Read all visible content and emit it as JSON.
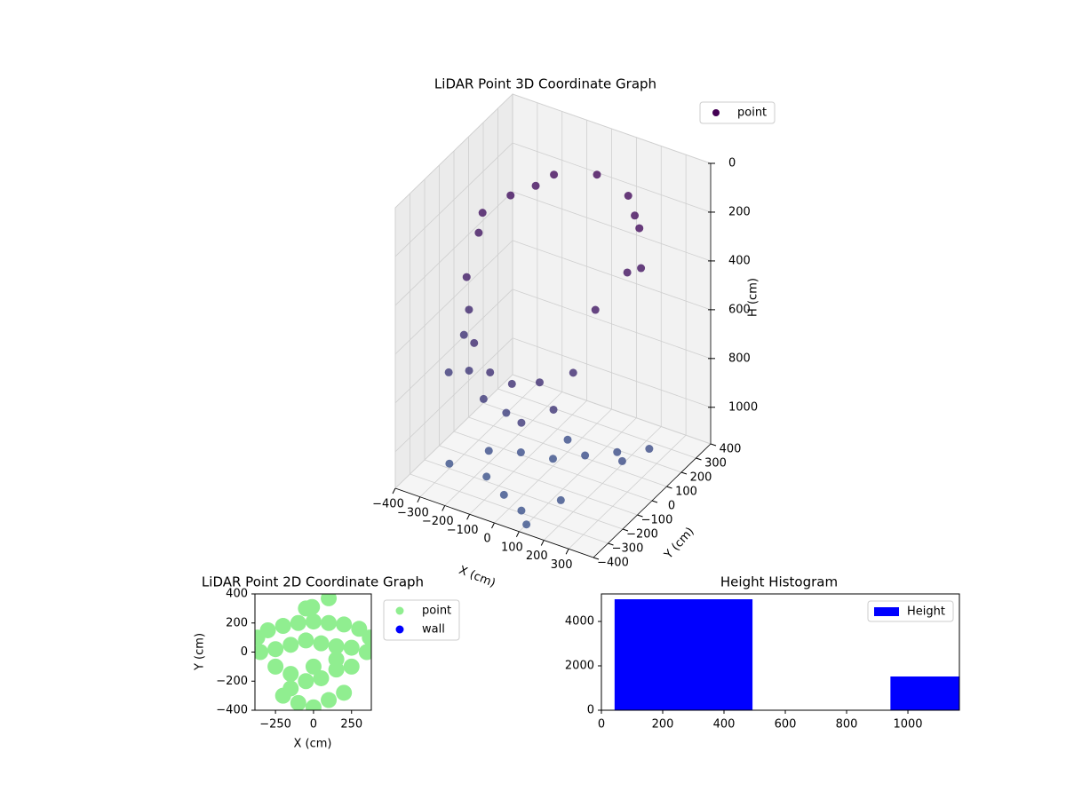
{
  "chart_data": [
    {
      "type": "scatter3d",
      "title": "LiDAR Point 3D Coordinate Graph",
      "xlabel": "X (cm)",
      "ylabel": "Y (cm)",
      "zlabel": "H (cm)",
      "xlim": [
        -400,
        400
      ],
      "ylim": [
        -400,
        400
      ],
      "zlim": [
        0,
        1150
      ],
      "zinvert": true,
      "xticks": [
        {
          "value": -400,
          "label": "−400"
        },
        {
          "value": -300,
          "label": "−300"
        },
        {
          "value": -200,
          "label": "−200"
        },
        {
          "value": -100,
          "label": "−100"
        },
        0,
        100,
        200,
        300
      ],
      "yticks": [
        {
          "value": -400,
          "label": "−400"
        },
        {
          "value": -300,
          "label": "−300"
        },
        {
          "value": -200,
          "label": "−200"
        },
        {
          "value": -100,
          "label": "−100"
        },
        0,
        100,
        200,
        300,
        400
      ],
      "zticks": [
        0,
        200,
        400,
        600,
        800,
        1000
      ],
      "colormap": [
        "#440154",
        "#3b528b"
      ],
      "legend": "upper right",
      "series": [
        {
          "name": "point",
          "color": "#440154",
          "x": [
            -300,
            -260,
            -150,
            0,
            150,
            260,
            300,
            260,
            -260,
            -200,
            200,
            -320,
            320,
            -280,
            -200,
            -100,
            0,
            100,
            200,
            -330,
            -250,
            -150,
            50,
            150,
            -350,
            -100,
            -200,
            -100,
            0,
            100,
            200,
            300,
            -150,
            -50,
            50,
            150,
            250,
            0,
            -300,
            100
          ],
          "y": [
            0,
            150,
            260,
            300,
            260,
            150,
            0,
            -150,
            -150,
            220,
            220,
            60,
            60,
            -100,
            -200,
            -260,
            -280,
            -260,
            -200,
            -50,
            -150,
            -220,
            -300,
            -250,
            -120,
            -150,
            -100,
            -50,
            0,
            50,
            100,
            150,
            -200,
            -250,
            -300,
            -200,
            50,
            100,
            -200,
            -350
          ],
          "z": [
            300,
            220,
            160,
            130,
            140,
            170,
            250,
            330,
            380,
            200,
            180,
            260,
            260,
            550,
            600,
            650,
            650,
            620,
            580,
            700,
            760,
            800,
            780,
            720,
            820,
            880,
            1100,
            1100,
            1120,
            1100,
            1080,
            1060,
            1130,
            1140,
            1140,
            1120,
            1070,
            1100,
            1130,
            1150
          ]
        }
      ]
    },
    {
      "type": "scatter",
      "title": "LiDAR Point 2D Coordinate Graph",
      "xlabel": "X (cm)",
      "ylabel": "Y (cm)",
      "xlim": [
        -385,
        380
      ],
      "ylim": [
        -400,
        400
      ],
      "xticks": [
        {
          "value": -250,
          "label": "−250"
        },
        0,
        250
      ],
      "yticks": [
        {
          "value": -400,
          "label": "−400"
        },
        {
          "value": -200,
          "label": "−200"
        },
        0,
        200,
        400
      ],
      "legend": "outside right",
      "series": [
        {
          "name": "point",
          "color": "#90ee90",
          "x": [
            -370,
            -300,
            -200,
            -100,
            0,
            100,
            200,
            300,
            370,
            -350,
            -250,
            -150,
            -50,
            50,
            150,
            250,
            350,
            -250,
            -150,
            -50,
            50,
            150,
            250,
            -200,
            -100,
            0,
            100,
            200,
            -150,
            0,
            150,
            -50,
            100,
            -30,
            -10
          ],
          "y": [
            100,
            150,
            180,
            200,
            210,
            200,
            190,
            160,
            100,
            0,
            20,
            50,
            80,
            60,
            40,
            30,
            0,
            -100,
            -150,
            -200,
            -180,
            -120,
            -100,
            -300,
            -350,
            -380,
            -330,
            -280,
            -250,
            -100,
            -50,
            300,
            370,
            300,
            310
          ]
        },
        {
          "name": "wall",
          "color": "#0000ff",
          "x": [],
          "y": []
        }
      ]
    },
    {
      "type": "histogram",
      "title": "Height Histogram",
      "xlim": [
        0,
        1168
      ],
      "ylim": [
        0,
        5240
      ],
      "xticks": [
        0,
        200,
        400,
        600,
        800,
        1000
      ],
      "yticks": [
        0,
        2000,
        4000
      ],
      "legend": "upper right",
      "series": [
        {
          "name": "Height",
          "color": "#0000ff",
          "bins": [
            43,
            493,
            943,
            1393
          ],
          "counts": [
            5000,
            20,
            1520
          ]
        }
      ]
    }
  ]
}
